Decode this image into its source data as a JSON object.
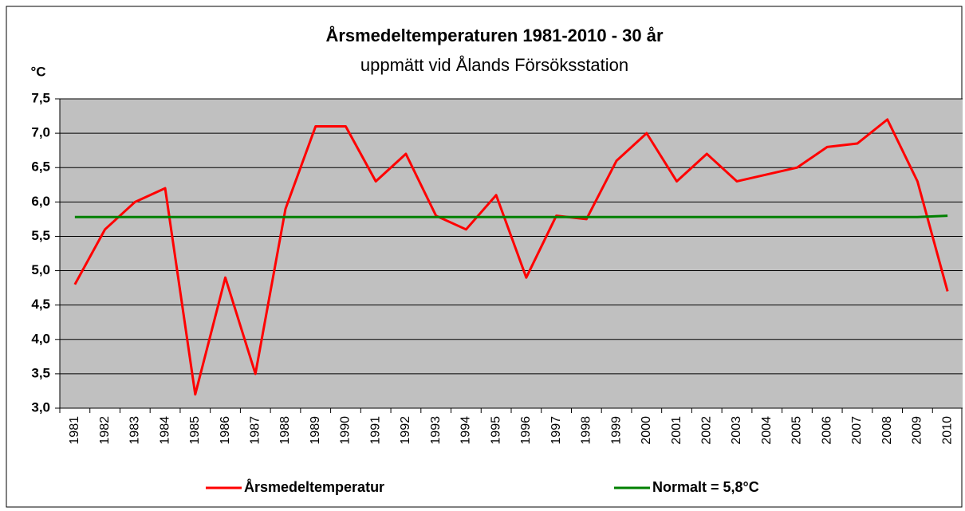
{
  "chart_data": {
    "type": "line",
    "title": "Årsmedeltemperaturen 1981-2010 - 30 år",
    "subtitle": "uppmätt vid Ålands Försöksstation",
    "y_label": "°C",
    "categories": [
      "1981",
      "1982",
      "1983",
      "1984",
      "1985",
      "1986",
      "1987",
      "1988",
      "1989",
      "1990",
      "1991",
      "1992",
      "1993",
      "1994",
      "1995",
      "1996",
      "1997",
      "1998",
      "1999",
      "2000",
      "2001",
      "2002",
      "2003",
      "2004",
      "2005",
      "2006",
      "2007",
      "2008",
      "2009",
      "2010"
    ],
    "series": [
      {
        "name": "Årsmedeltemperatur",
        "color": "#ff0000",
        "values": [
          4.8,
          5.6,
          6.0,
          6.2,
          3.2,
          4.9,
          3.5,
          5.9,
          7.1,
          7.1,
          6.3,
          6.7,
          5.8,
          5.6,
          6.1,
          4.9,
          5.8,
          5.75,
          6.6,
          7.0,
          6.3,
          6.7,
          6.3,
          6.4,
          6.5,
          6.8,
          6.85,
          7.2,
          6.3,
          4.7
        ]
      },
      {
        "name": "Normalt = 5,8°C",
        "color": "#008000",
        "values": [
          5.78,
          5.78,
          5.78,
          5.78,
          5.78,
          5.78,
          5.78,
          5.78,
          5.78,
          5.78,
          5.78,
          5.78,
          5.78,
          5.78,
          5.78,
          5.78,
          5.78,
          5.78,
          5.78,
          5.78,
          5.78,
          5.78,
          5.78,
          5.78,
          5.78,
          5.78,
          5.78,
          5.78,
          5.78,
          5.8
        ]
      }
    ],
    "ylim": [
      3,
      7.5
    ],
    "yticks": [
      {
        "value": 3,
        "label": "3,0"
      },
      {
        "value": 3.5,
        "label": "3,5"
      },
      {
        "value": 4,
        "label": "4,0"
      },
      {
        "value": 4.5,
        "label": "4,5"
      },
      {
        "value": 5,
        "label": "5,0"
      },
      {
        "value": 5.5,
        "label": "5,5"
      },
      {
        "value": 6,
        "label": "6,0"
      },
      {
        "value": 6.5,
        "label": "6,5"
      },
      {
        "value": 7,
        "label": "7,0"
      },
      {
        "value": 7.5,
        "label": "7,5"
      }
    ],
    "grid": true,
    "background": "#c0c0c0",
    "legend": "bottom"
  }
}
